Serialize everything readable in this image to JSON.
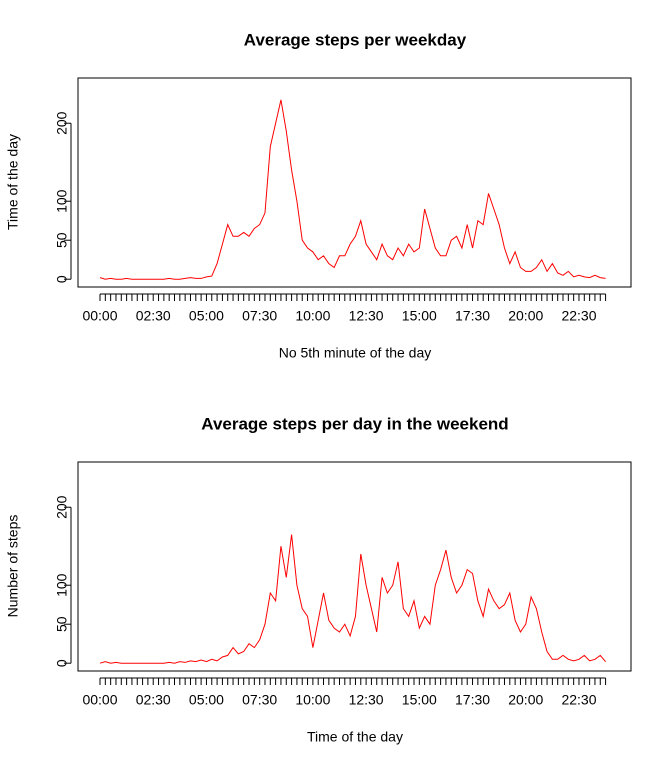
{
  "chart_data": [
    {
      "type": "line",
      "title": "Average steps per weekday",
      "xlabel": "No 5th minute of the day",
      "ylabel": "Time of the day",
      "categories": [
        "00:00",
        null,
        null,
        null,
        null,
        null,
        null,
        null,
        null,
        null,
        "02:30",
        null,
        null,
        null,
        null,
        null,
        null,
        null,
        null,
        null,
        "05:00",
        null,
        null,
        null,
        null,
        null,
        null,
        null,
        null,
        null,
        "07:30",
        null,
        null,
        null,
        null,
        null,
        null,
        null,
        null,
        null,
        "10:00",
        null,
        null,
        null,
        null,
        null,
        null,
        null,
        null,
        null,
        "12:30",
        null,
        null,
        null,
        null,
        null,
        null,
        null,
        null,
        null,
        "15:00",
        null,
        null,
        null,
        null,
        null,
        null,
        null,
        null,
        null,
        "17:30",
        null,
        null,
        null,
        null,
        null,
        null,
        null,
        null,
        null,
        "20:00",
        null,
        null,
        null,
        null,
        null,
        null,
        null,
        null,
        null,
        "22:30",
        null,
        null,
        null,
        null,
        null
      ],
      "values": [
        2,
        0,
        1,
        0,
        0,
        1,
        0,
        0,
        0,
        0,
        0,
        0,
        0,
        1,
        0,
        0,
        1,
        2,
        1,
        1,
        3,
        4,
        20,
        45,
        70,
        55,
        55,
        60,
        55,
        65,
        70,
        85,
        170,
        200,
        230,
        190,
        140,
        100,
        50,
        40,
        35,
        25,
        30,
        20,
        15,
        30,
        30,
        45,
        55,
        75,
        45,
        35,
        25,
        45,
        30,
        25,
        40,
        30,
        45,
        35,
        40,
        90,
        65,
        40,
        30,
        30,
        50,
        55,
        40,
        70,
        40,
        75,
        70,
        110,
        90,
        70,
        40,
        20,
        35,
        15,
        10,
        10,
        15,
        25,
        10,
        20,
        8,
        5,
        10,
        3,
        5,
        3,
        2,
        5,
        2,
        1
      ],
      "color": "#ff0000",
      "ylim": [
        -10,
        258
      ],
      "yticks": [
        0,
        50,
        100,
        200
      ]
    },
    {
      "type": "line",
      "title": "Average steps per day in the weekend",
      "xlabel": "Time of the day",
      "ylabel": "Number of steps",
      "categories": [
        "00:00",
        null,
        null,
        null,
        null,
        null,
        null,
        null,
        null,
        null,
        "02:30",
        null,
        null,
        null,
        null,
        null,
        null,
        null,
        null,
        null,
        "05:00",
        null,
        null,
        null,
        null,
        null,
        null,
        null,
        null,
        null,
        "07:30",
        null,
        null,
        null,
        null,
        null,
        null,
        null,
        null,
        null,
        "10:00",
        null,
        null,
        null,
        null,
        null,
        null,
        null,
        null,
        null,
        "12:30",
        null,
        null,
        null,
        null,
        null,
        null,
        null,
        null,
        null,
        "15:00",
        null,
        null,
        null,
        null,
        null,
        null,
        null,
        null,
        null,
        "17:30",
        null,
        null,
        null,
        null,
        null,
        null,
        null,
        null,
        null,
        "20:00",
        null,
        null,
        null,
        null,
        null,
        null,
        null,
        null,
        null,
        "22:30",
        null,
        null,
        null,
        null,
        null
      ],
      "values": [
        0,
        2,
        0,
        1,
        0,
        0,
        0,
        0,
        0,
        0,
        0,
        0,
        0,
        1,
        0,
        2,
        1,
        3,
        2,
        4,
        2,
        5,
        3,
        8,
        10,
        20,
        12,
        15,
        25,
        20,
        30,
        50,
        90,
        80,
        150,
        110,
        165,
        100,
        70,
        60,
        20,
        55,
        90,
        55,
        45,
        40,
        50,
        35,
        60,
        140,
        100,
        70,
        40,
        110,
        90,
        100,
        130,
        70,
        60,
        80,
        45,
        60,
        50,
        100,
        120,
        145,
        110,
        90,
        100,
        120,
        115,
        80,
        60,
        95,
        80,
        70,
        75,
        90,
        55,
        40,
        50,
        85,
        70,
        40,
        15,
        5,
        5,
        10,
        5,
        3,
        5,
        10,
        3,
        5,
        10,
        2
      ],
      "color": "#ff0000",
      "ylim": [
        -10,
        258
      ],
      "yticks": [
        0,
        50,
        100,
        200
      ]
    }
  ]
}
